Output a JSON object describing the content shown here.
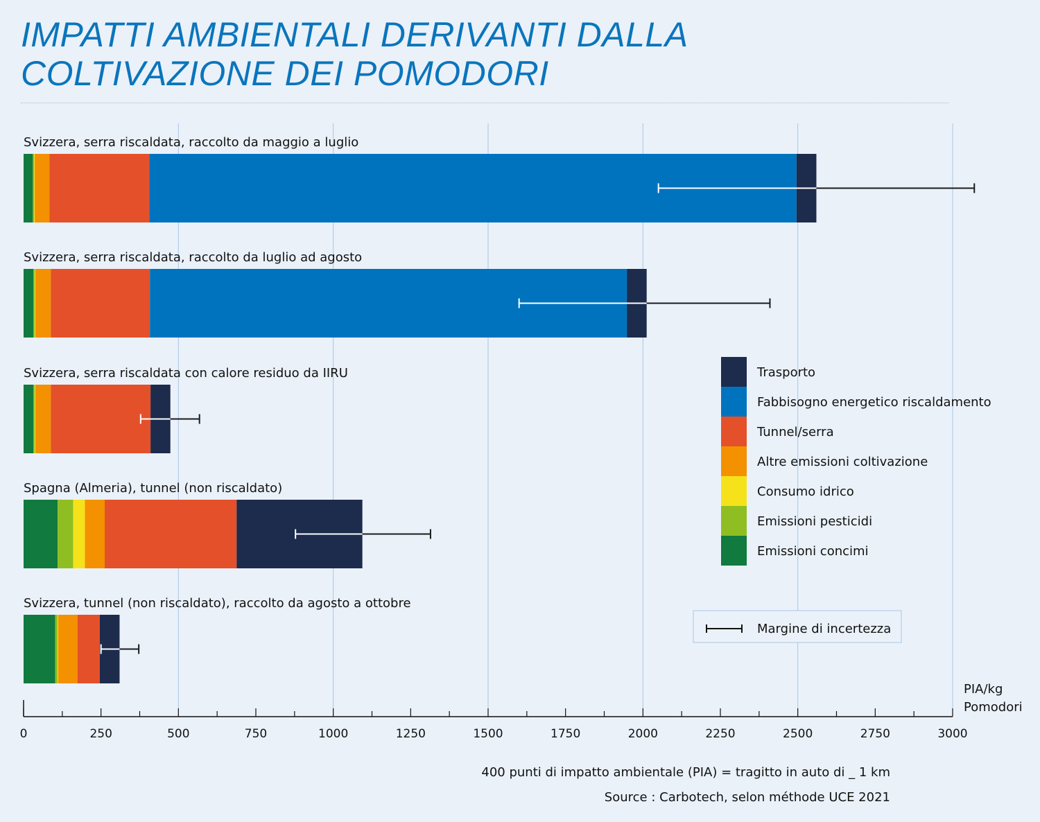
{
  "title_line1": "IMPATTI AMBIENTALI DERIVANTI DALLA",
  "title_line2": "COLTIVAZIONE DEI POMODORI",
  "footnote": "400 punti di impatto ambientale (PIA) = tragitto in auto di _ 1 km",
  "source": "Source : Carbotech, selon méthode UCE 2021",
  "chart_data": {
    "type": "bar",
    "orientation": "horizontal",
    "stacked": true,
    "xlabel_line1": "PIA/kg",
    "xlabel_line2": "Pomodori",
    "xlim": [
      0,
      3000
    ],
    "x_ticks": [
      0,
      250,
      500,
      750,
      1000,
      1250,
      1500,
      1750,
      2000,
      2250,
      2500,
      2750,
      3000
    ],
    "x_tick_labels": [
      "0",
      "250",
      "500",
      "750",
      "1000",
      "1250",
      "1500",
      "1750",
      "2000",
      "2250",
      "2500",
      "2750",
      "3000"
    ],
    "grid": "vertical every 500",
    "legend_position": "right",
    "categories": [
      "Svizzera, serra riscaldata, raccolto da maggio a luglio",
      "Svizzera, serra riscaldata, raccolto da luglio ad agosto",
      "Svizzera, serra riscaldata con calore residuo da IIRU",
      "Spagna (Almeria), tunnel (non riscaldato)",
      "Svizzera, tunnel (non riscaldato), raccolto da agosto a ottobre"
    ],
    "series": [
      {
        "name": "Emissioni concimi",
        "color": "#117a3e",
        "values": [
          30,
          32,
          32,
          110,
          102
        ]
      },
      {
        "name": "Emissioni pesticidi",
        "color": "#8fbe22",
        "values": [
          4,
          4,
          4,
          50,
          8
        ]
      },
      {
        "name": "Consumo idrico",
        "color": "#f6e21a",
        "values": [
          2,
          2,
          2,
          38,
          2
        ]
      },
      {
        "name": "Altre emissioni coltivazione",
        "color": "#f39100",
        "values": [
          48,
          50,
          50,
          64,
          62
        ]
      },
      {
        "name": "Tunnel/serra",
        "color": "#e4502a",
        "values": [
          322,
          320,
          322,
          426,
          72
        ]
      },
      {
        "name": "Fabbisogno energetico riscaldamento",
        "color": "#0073bf",
        "values": [
          2090,
          1540,
          0,
          0,
          0
        ]
      },
      {
        "name": "Trasporto",
        "color": "#1d2b4c",
        "values": [
          64,
          64,
          64,
          406,
          64
        ]
      }
    ],
    "totals": [
      2560,
      2012,
      474,
      1094,
      310
    ],
    "error_bars": [
      {
        "low": 2050,
        "high": 3070
      },
      {
        "low": 1600,
        "high": 2410
      },
      {
        "low": 378,
        "high": 568
      },
      {
        "low": 878,
        "high": 1314
      },
      {
        "low": 250,
        "high": 372
      }
    ],
    "error_legend": "Margine di incertezza"
  }
}
